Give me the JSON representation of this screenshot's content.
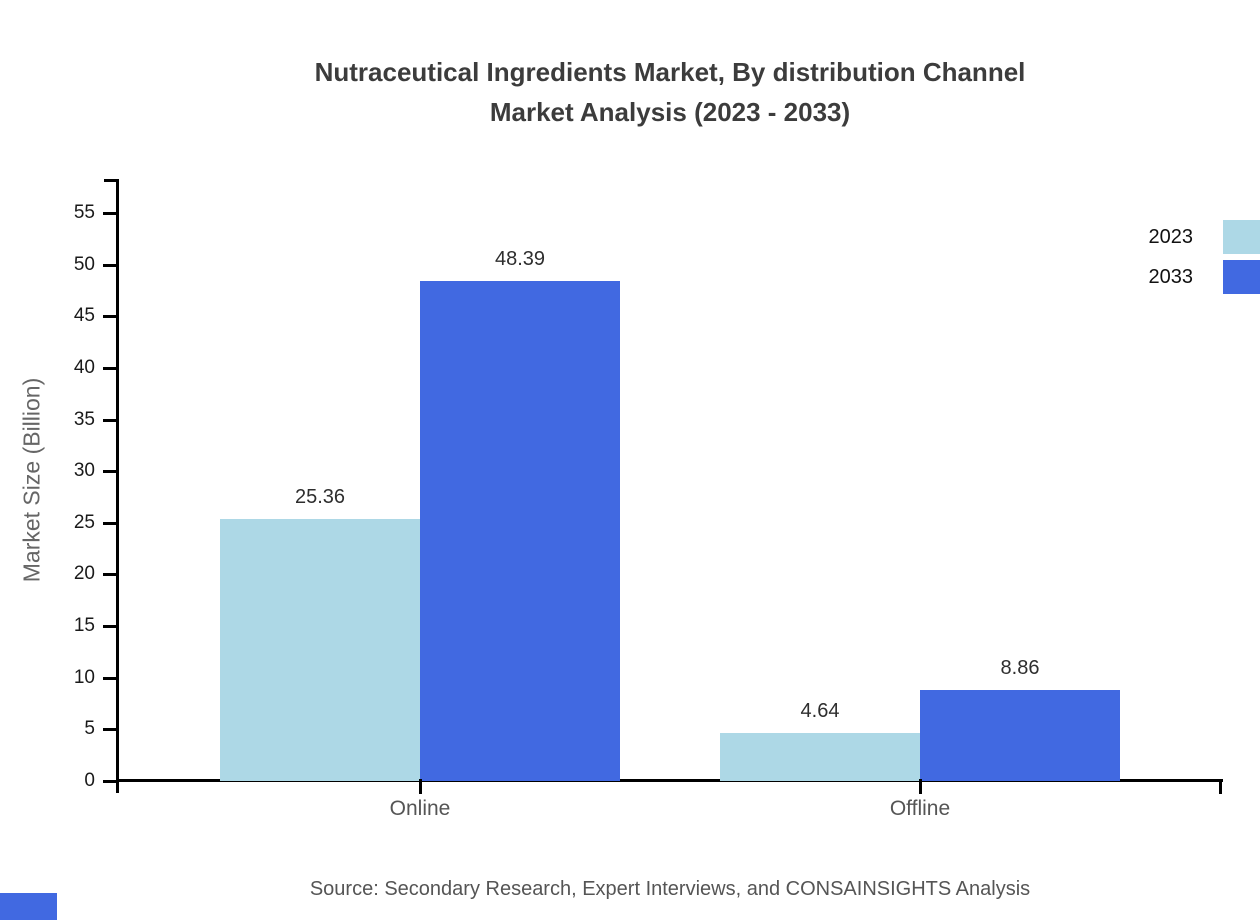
{
  "title": {
    "line1": "Nutraceutical Ingredients Market, By distribution Channel",
    "line2": "Market Analysis (2023 - 2033)"
  },
  "y_axis": {
    "label": "Market Size (Billion)",
    "ticks": [
      0,
      5,
      10,
      15,
      20,
      25,
      30,
      35,
      40,
      45,
      50,
      55
    ]
  },
  "legend": {
    "items": [
      {
        "label": "2023",
        "color": "#ADD8E6"
      },
      {
        "label": "2033",
        "color": "#4169E1"
      }
    ],
    "position": "top-right"
  },
  "chart_data": {
    "type": "bar",
    "categories": [
      "Online",
      "Offline"
    ],
    "series": [
      {
        "name": "2023",
        "color": "#ADD8E6",
        "values": [
          25.36,
          4.64
        ]
      },
      {
        "name": "2033",
        "color": "#4169E1",
        "values": [
          48.39,
          8.86
        ]
      }
    ],
    "title": "Nutraceutical Ingredients Market, By distribution Channel Market Analysis (2023 - 2033)",
    "xlabel": "",
    "ylabel": "Market Size (Billion)",
    "ylim": [
      0,
      55
    ],
    "grid": false,
    "legend_position": "top-right",
    "value_labels": [
      "25.36",
      "48.39",
      "4.64",
      "8.86"
    ]
  },
  "source": "Source: Secondary Research, Expert Interviews, and CONSAINSIGHTS Analysis",
  "branding": {
    "logo_color": "#4169E1"
  }
}
